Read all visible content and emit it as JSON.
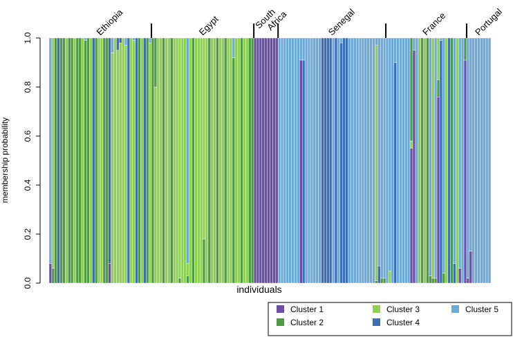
{
  "chart_data": {
    "type": "bar",
    "stacked": true,
    "xlabel": "individuals",
    "ylabel": "membership probability",
    "ylim": [
      0,
      1
    ],
    "yticks": [
      "0.0",
      "0.2",
      "0.4",
      "0.6",
      "0.8",
      "1.0"
    ],
    "legend_position": "bottom-right",
    "series": [
      {
        "name": "Cluster 1",
        "color": "#6a4fa6"
      },
      {
        "name": "Cluster 2",
        "color": "#4e9a47"
      },
      {
        "name": "Cluster 3",
        "color": "#8fcf55"
      },
      {
        "name": "Cluster 4",
        "color": "#3d6fb6"
      },
      {
        "name": "Cluster 5",
        "color": "#6fa9d6"
      }
    ],
    "populations": [
      {
        "label": "Ethiopia",
        "count": 38
      },
      {
        "label": "Egypt",
        "count": 38
      },
      {
        "label": "South Africa",
        "label_lines": [
          "South",
          "Africa"
        ],
        "count": 9
      },
      {
        "label": "Senegal",
        "count": 40
      },
      {
        "label": "France",
        "count": 30
      },
      {
        "label": "Portugal",
        "count": 9
      }
    ],
    "individual_segments": {
      "default": {
        "Ethiopia": [
          [
            "Cluster 2",
            1.0
          ]
        ],
        "Egypt": [
          [
            "Cluster 3",
            1.0
          ]
        ],
        "South Africa": [
          [
            "Cluster 1",
            1.0
          ]
        ],
        "Senegal": [
          [
            "Cluster 5",
            1.0
          ]
        ],
        "France": [
          [
            "Cluster 5",
            1.0
          ]
        ],
        "Portugal": [
          [
            "Cluster 5",
            1.0
          ]
        ]
      },
      "overrides": [
        {
          "i": 0,
          "seg": [
            [
              "Cluster 1",
              0.08
            ],
            [
              "Cluster 5",
              0.92
            ]
          ]
        },
        {
          "i": 1,
          "seg": [
            [
              "Cluster 2",
              0.06
            ],
            [
              "Cluster 3",
              0.94
            ]
          ]
        },
        {
          "i": 3,
          "seg": [
            [
              "Cluster 4",
              1.0
            ]
          ]
        },
        {
          "i": 6,
          "seg": [
            [
              "Cluster 3",
              1.0
            ]
          ]
        },
        {
          "i": 9,
          "seg": [
            [
              "Cluster 3",
              1.0
            ]
          ]
        },
        {
          "i": 12,
          "seg": [
            [
              "Cluster 3",
              1.0
            ]
          ]
        },
        {
          "i": 13,
          "seg": [
            [
              "Cluster 2",
              0.99
            ],
            [
              "Cluster 5",
              0.01
            ]
          ]
        },
        {
          "i": 15,
          "seg": [
            [
              "Cluster 3",
              1.0
            ]
          ]
        },
        {
          "i": 16,
          "seg": [
            [
              "Cluster 4",
              1.0
            ]
          ]
        },
        {
          "i": 18,
          "seg": [
            [
              "Cluster 3",
              1.0
            ]
          ]
        },
        {
          "i": 19,
          "seg": [
            [
              "Cluster 3",
              1.0
            ]
          ]
        },
        {
          "i": 22,
          "seg": [
            [
              "Cluster 1",
              0.08
            ],
            [
              "Cluster 4",
              0.92
            ]
          ]
        },
        {
          "i": 23,
          "seg": [
            [
              "Cluster 3",
              0.94
            ],
            [
              "Cluster 5",
              0.06
            ]
          ]
        },
        {
          "i": 24,
          "seg": [
            [
              "Cluster 3",
              1.0
            ]
          ]
        },
        {
          "i": 25,
          "seg": [
            [
              "Cluster 3",
              0.95
            ],
            [
              "Cluster 4",
              0.05
            ]
          ]
        },
        {
          "i": 26,
          "seg": [
            [
              "Cluster 3",
              0.98
            ],
            [
              "Cluster 4",
              0.02
            ]
          ]
        },
        {
          "i": 27,
          "seg": [
            [
              "Cluster 3",
              1.0
            ]
          ]
        },
        {
          "i": 28,
          "seg": [
            [
              "Cluster 3",
              0.97
            ],
            [
              "Cluster 5",
              0.03
            ]
          ]
        },
        {
          "i": 29,
          "seg": [
            [
              "Cluster 4",
              1.0
            ]
          ]
        },
        {
          "i": 30,
          "seg": [
            [
              "Cluster 3",
              1.0
            ]
          ]
        },
        {
          "i": 31,
          "seg": [
            [
              "Cluster 3",
              0.99
            ],
            [
              "Cluster 5",
              0.01
            ]
          ]
        },
        {
          "i": 32,
          "seg": [
            [
              "Cluster 4",
              1.0
            ]
          ]
        },
        {
          "i": 33,
          "seg": [
            [
              "Cluster 2",
              1.0
            ]
          ]
        },
        {
          "i": 34,
          "seg": [
            [
              "Cluster 3",
              1.0
            ]
          ]
        },
        {
          "i": 35,
          "seg": [
            [
              "Cluster 4",
              1.0
            ]
          ]
        },
        {
          "i": 37,
          "seg": [
            [
              "Cluster 3",
              0.98
            ],
            [
              "Cluster 5",
              0.02
            ]
          ]
        },
        {
          "i": 38,
          "seg": [
            [
              "Cluster 2",
              1.0
            ]
          ]
        },
        {
          "i": 39,
          "seg": [
            [
              "Cluster 3",
              0.8
            ],
            [
              "Cluster 2",
              0.2
            ]
          ]
        },
        {
          "i": 42,
          "seg": [
            [
              "Cluster 2",
              1.0
            ]
          ]
        },
        {
          "i": 45,
          "seg": [
            [
              "Cluster 2",
              1.0
            ]
          ]
        },
        {
          "i": 48,
          "seg": [
            [
              "Cluster 2",
              0.02
            ],
            [
              "Cluster 3",
              0.98
            ]
          ]
        },
        {
          "i": 51,
          "seg": [
            [
              "Cluster 2",
              0.03
            ],
            [
              "Cluster 3",
              0.05
            ],
            [
              "Cluster 5",
              0.92
            ]
          ]
        },
        {
          "i": 53,
          "seg": [
            [
              "Cluster 2",
              1.0
            ]
          ]
        },
        {
          "i": 57,
          "seg": [
            [
              "Cluster 2",
              0.18
            ],
            [
              "Cluster 3",
              0.82
            ]
          ]
        },
        {
          "i": 59,
          "seg": [
            [
              "Cluster 2",
              1.0
            ]
          ]
        },
        {
          "i": 62,
          "seg": [
            [
              "Cluster 2",
              1.0
            ]
          ]
        },
        {
          "i": 65,
          "seg": [
            [
              "Cluster 2",
              1.0
            ]
          ]
        },
        {
          "i": 68,
          "seg": [
            [
              "Cluster 2",
              0.92
            ],
            [
              "Cluster 5",
              0.08
            ]
          ]
        },
        {
          "i": 71,
          "seg": [
            [
              "Cluster 2",
              1.0
            ]
          ]
        },
        {
          "i": 74,
          "seg": [
            [
              "Cluster 2",
              1.0
            ]
          ]
        },
        {
          "i": 75,
          "seg": [
            [
              "Cluster 2",
              1.0
            ]
          ]
        },
        {
          "i": 93,
          "seg": [
            [
              "Cluster 1",
              0.91
            ],
            [
              "Cluster 5",
              0.09
            ]
          ]
        },
        {
          "i": 94,
          "seg": [
            [
              "Cluster 4",
              0.91
            ],
            [
              "Cluster 5",
              0.09
            ]
          ]
        },
        {
          "i": 101,
          "seg": [
            [
              "Cluster 4",
              1.0
            ]
          ]
        },
        {
          "i": 102,
          "seg": [
            [
              "Cluster 4",
              1.0
            ]
          ]
        },
        {
          "i": 103,
          "seg": [
            [
              "Cluster 4",
              1.0
            ]
          ]
        },
        {
          "i": 104,
          "seg": [
            [
              "Cluster 4",
              1.0
            ]
          ]
        },
        {
          "i": 106,
          "seg": [
            [
              "Cluster 4",
              1.0
            ]
          ]
        },
        {
          "i": 108,
          "seg": [
            [
              "Cluster 4",
              0.98
            ],
            [
              "Cluster 5",
              0.02
            ]
          ]
        },
        {
          "i": 109,
          "seg": [
            [
              "Cluster 4",
              1.0
            ]
          ]
        },
        {
          "i": 110,
          "seg": [
            [
              "Cluster 4",
              1.0
            ]
          ]
        },
        {
          "i": 121,
          "seg": [
            [
              "Cluster 2",
              0.01
            ],
            [
              "Cluster 3",
              0.96
            ],
            [
              "Cluster 5",
              0.03
            ]
          ]
        },
        {
          "i": 122,
          "seg": [
            [
              "Cluster 4",
              0.07
            ],
            [
              "Cluster 5",
              0.93
            ]
          ]
        },
        {
          "i": 123,
          "seg": [
            [
              "Cluster 2",
              0.02
            ],
            [
              "Cluster 5",
              0.98
            ]
          ]
        },
        {
          "i": 124,
          "seg": [
            [
              "Cluster 2",
              0.02
            ],
            [
              "Cluster 5",
              0.98
            ]
          ]
        },
        {
          "i": 126,
          "seg": [
            [
              "Cluster 3",
              0.05
            ],
            [
              "Cluster 5",
              0.95
            ]
          ]
        },
        {
          "i": 128,
          "seg": [
            [
              "Cluster 4",
              0.9
            ],
            [
              "Cluster 5",
              0.1
            ]
          ]
        },
        {
          "i": 134,
          "seg": [
            [
              "Cluster 1",
              0.55
            ],
            [
              "Cluster 3",
              0.03
            ],
            [
              "Cluster 2",
              0.42
            ]
          ]
        },
        {
          "i": 135,
          "seg": [
            [
              "Cluster 1",
              0.95
            ],
            [
              "Cluster 5",
              0.05
            ]
          ]
        },
        {
          "i": 137,
          "seg": [
            [
              "Cluster 3",
              1.0
            ]
          ]
        },
        {
          "i": 138,
          "seg": [
            [
              "Cluster 2",
              1.0
            ]
          ]
        },
        {
          "i": 139,
          "seg": [
            [
              "Cluster 3",
              1.0
            ]
          ]
        },
        {
          "i": 140,
          "seg": [
            [
              "Cluster 2",
              1.0
            ]
          ]
        },
        {
          "i": 141,
          "seg": [
            [
              "Cluster 2",
              0.03
            ],
            [
              "Cluster 5",
              0.97
            ]
          ]
        },
        {
          "i": 142,
          "seg": [
            [
              "Cluster 2",
              0.02
            ],
            [
              "Cluster 3",
              0.98
            ]
          ]
        },
        {
          "i": 143,
          "seg": [
            [
              "Cluster 2",
              0.02
            ],
            [
              "Cluster 5",
              0.98
            ]
          ]
        },
        {
          "i": 144,
          "seg": [
            [
              "Cluster 1",
              0.76
            ],
            [
              "Cluster 2",
              0.07
            ],
            [
              "Cluster 3",
              0.17
            ]
          ]
        },
        {
          "i": 145,
          "seg": [
            [
              "Cluster 4",
              0.99
            ],
            [
              "Cluster 5",
              0.01
            ]
          ]
        },
        {
          "i": 146,
          "seg": [
            [
              "Cluster 2",
              0.04
            ],
            [
              "Cluster 5",
              0.96
            ]
          ]
        },
        {
          "i": 147,
          "seg": [
            [
              "Cluster 3",
              1.0
            ]
          ]
        },
        {
          "i": 148,
          "seg": [
            [
              "Cluster 4",
              1.0
            ]
          ]
        },
        {
          "i": 149,
          "seg": [
            [
              "Cluster 2",
              1.0
            ]
          ]
        },
        {
          "i": 150,
          "seg": [
            [
              "Cluster 4",
              0.08
            ],
            [
              "Cluster 5",
              0.92
            ]
          ]
        },
        {
          "i": 151,
          "seg": [
            [
              "Cluster 3",
              1.0
            ]
          ]
        },
        {
          "i": 152,
          "seg": [
            [
              "Cluster 1",
              0.06
            ],
            [
              "Cluster 5",
              0.94
            ]
          ]
        },
        {
          "i": 154,
          "seg": [
            [
              "Cluster 1",
              0.91
            ],
            [
              "Cluster 2",
              0.09
            ]
          ]
        },
        {
          "i": 155,
          "seg": [
            [
              "Cluster 1",
              0.02
            ],
            [
              "Cluster 5",
              0.98
            ]
          ]
        },
        {
          "i": 156,
          "seg": [
            [
              "Cluster 1",
              0.13
            ],
            [
              "Cluster 5",
              0.87
            ]
          ]
        }
      ]
    }
  }
}
